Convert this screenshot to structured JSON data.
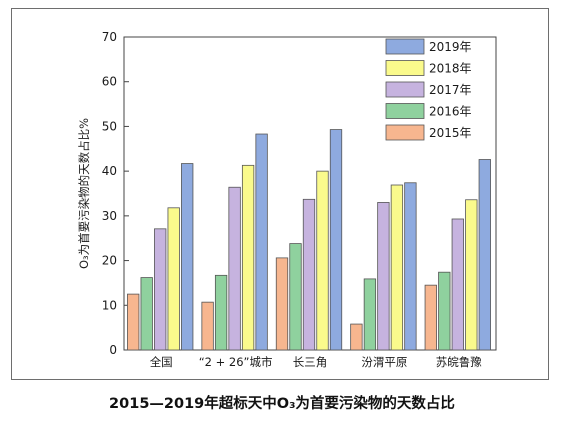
{
  "caption": "2015—2019年超标天中O₃为首要污染物的天数占比",
  "chart_data": {
    "type": "bar",
    "title": "",
    "xlabel": "",
    "ylabel": "O₃为首要污染物的天数占比%",
    "ylim": [
      0,
      70
    ],
    "yticks": [
      0,
      10,
      20,
      30,
      40,
      50,
      60,
      70
    ],
    "grid": false,
    "legend_position": "top-right",
    "categories": [
      "全国",
      "“2 + 26”城市",
      "长三角",
      "汾渭平原",
      "苏皖鲁豫"
    ],
    "series": [
      {
        "name": "2015年",
        "color": "#f7b68f",
        "values": [
          12.5,
          10.7,
          20.6,
          5.8,
          14.5
        ]
      },
      {
        "name": "2016年",
        "color": "#8fd19e",
        "values": [
          16.2,
          16.7,
          23.8,
          15.9,
          17.4
        ]
      },
      {
        "name": "2017年",
        "color": "#c6b3df",
        "values": [
          27.1,
          36.4,
          33.7,
          33.0,
          29.3
        ]
      },
      {
        "name": "2018年",
        "color": "#fafa8c",
        "values": [
          31.8,
          41.3,
          40.0,
          36.9,
          33.6
        ]
      },
      {
        "name": "2019年",
        "color": "#8eaadf",
        "values": [
          41.7,
          48.3,
          49.3,
          37.4,
          42.6
        ]
      }
    ]
  }
}
